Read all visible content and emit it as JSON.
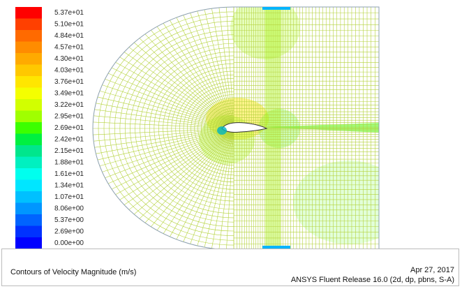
{
  "colorbar": {
    "levels": [
      {
        "label": "5.37e+01",
        "color": "#ff0000"
      },
      {
        "label": "5.10e+01",
        "color": "#ff4000"
      },
      {
        "label": "4.84e+01",
        "color": "#ff6a00"
      },
      {
        "label": "4.57e+01",
        "color": "#ff8c00"
      },
      {
        "label": "4.30e+01",
        "color": "#ffaa00"
      },
      {
        "label": "4.03e+01",
        "color": "#ffc800"
      },
      {
        "label": "3.76e+01",
        "color": "#ffe600"
      },
      {
        "label": "3.49e+01",
        "color": "#f4ff00"
      },
      {
        "label": "3.22e+01",
        "color": "#d2ff00"
      },
      {
        "label": "2.95e+01",
        "color": "#a0ff00"
      },
      {
        "label": "2.69e+01",
        "color": "#3cff00"
      },
      {
        "label": "2.42e+01",
        "color": "#00f040"
      },
      {
        "label": "2.15e+01",
        "color": "#00e68c"
      },
      {
        "label": "1.88e+01",
        "color": "#00f0c0"
      },
      {
        "label": "1.61e+01",
        "color": "#00ffee"
      },
      {
        "label": "1.34e+01",
        "color": "#00e6ff"
      },
      {
        "label": "1.07e+01",
        "color": "#00c0ff"
      },
      {
        "label": "8.06e+00",
        "color": "#0096ff"
      },
      {
        "label": "5.37e+00",
        "color": "#0064ff"
      },
      {
        "label": "2.69e+00",
        "color": "#0032ff"
      },
      {
        "label": "0.00e+00",
        "color": "#0000ff"
      }
    ]
  },
  "footer": {
    "title": "Contours of Velocity Magnitude (m/s)",
    "date": "Apr 27, 2017",
    "release": "ANSYS Fluent Release 16.0 (2d, dp, pbns, S-A)"
  }
}
